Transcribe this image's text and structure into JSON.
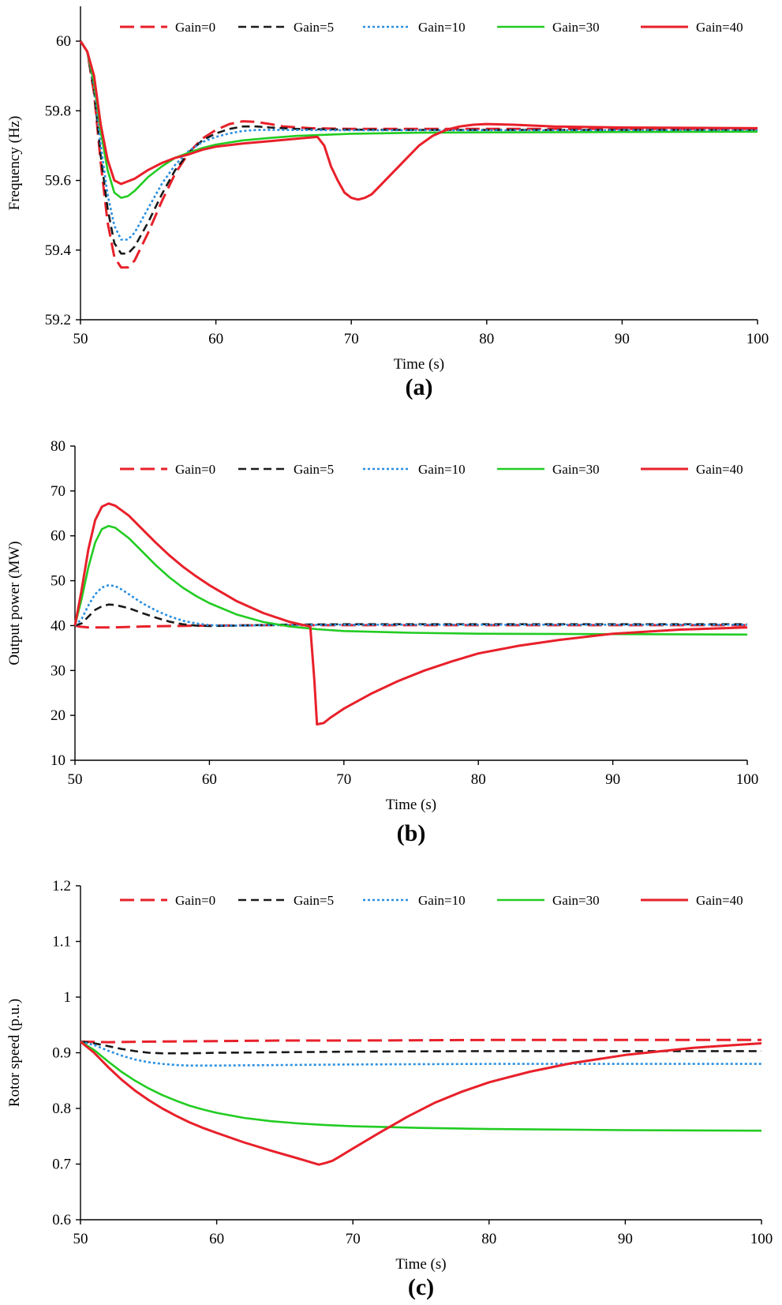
{
  "colors": {
    "gain0": "#e8202a",
    "gain5": "#1a1a1a",
    "gain10": "#2a8fe0",
    "gain30": "#22cc22",
    "gain40": "#e8202a"
  },
  "chart_data": [
    {
      "type": "line",
      "panel_label": "(a)",
      "title": "",
      "xlabel": "Time (s)",
      "ylabel": "Frequency (Hz)",
      "xlim": [
        50,
        100
      ],
      "ylim": [
        59.2,
        60.1
      ],
      "xticks": [
        "50",
        "60",
        "70",
        "80",
        "90",
        "100"
      ],
      "yticks": [
        "59.2",
        "59.4",
        "59.6",
        "59.8",
        "60"
      ],
      "legend": [
        "Gain=0",
        "Gain=5",
        "Gain=10",
        "Gain=30",
        "Gain=40"
      ],
      "series": [
        {
          "name": "Gain=0",
          "x": [
            50,
            50.5,
            51,
            51.5,
            52,
            52.5,
            53,
            53.5,
            54,
            55,
            56,
            57,
            58,
            59,
            60,
            61,
            62,
            63,
            64,
            65,
            67,
            70,
            75,
            80,
            90,
            100
          ],
          "values": [
            60,
            59.97,
            59.85,
            59.65,
            59.48,
            59.38,
            59.35,
            59.35,
            59.37,
            59.45,
            59.54,
            59.62,
            59.68,
            59.72,
            59.745,
            59.762,
            59.77,
            59.768,
            59.762,
            59.755,
            59.75,
            59.748,
            59.748,
            59.748,
            59.748,
            59.748
          ]
        },
        {
          "name": "Gain=5",
          "x": [
            50,
            50.5,
            51,
            51.5,
            52,
            52.5,
            53,
            53.5,
            54,
            55,
            56,
            57,
            58,
            59,
            60,
            61,
            62,
            63,
            64,
            66,
            70,
            75,
            80,
            90,
            100
          ],
          "values": [
            60,
            59.97,
            59.86,
            59.67,
            59.52,
            59.42,
            59.39,
            59.39,
            59.41,
            59.48,
            59.56,
            59.63,
            59.68,
            59.715,
            59.735,
            59.748,
            59.755,
            59.755,
            59.752,
            59.748,
            59.746,
            59.745,
            59.745,
            59.745,
            59.745
          ]
        },
        {
          "name": "Gain=10",
          "x": [
            50,
            50.5,
            51,
            51.5,
            52,
            52.5,
            53,
            53.5,
            54,
            55,
            56,
            57,
            58,
            59,
            60,
            61,
            62,
            63,
            65,
            70,
            75,
            80,
            90,
            100
          ],
          "values": [
            60,
            59.97,
            59.87,
            59.7,
            59.56,
            59.47,
            59.43,
            59.43,
            59.45,
            59.52,
            59.59,
            59.645,
            59.685,
            59.71,
            59.725,
            59.735,
            59.742,
            59.745,
            59.745,
            59.744,
            59.744,
            59.744,
            59.744,
            59.744
          ]
        },
        {
          "name": "Gain=30",
          "x": [
            50,
            50.5,
            51,
            51.5,
            52,
            52.5,
            53,
            53.5,
            54,
            55,
            56,
            57,
            58,
            59,
            60,
            62,
            64,
            66,
            70,
            75,
            80,
            90,
            100
          ],
          "values": [
            60,
            59.97,
            59.88,
            59.74,
            59.63,
            59.565,
            59.55,
            59.555,
            59.57,
            59.61,
            59.64,
            59.665,
            59.68,
            59.693,
            59.703,
            59.715,
            59.722,
            59.728,
            59.734,
            59.737,
            59.738,
            59.739,
            59.74
          ]
        },
        {
          "name": "Gain=40",
          "x": [
            50,
            50.5,
            51,
            51.5,
            52,
            52.5,
            53,
            54,
            55,
            56,
            57,
            58,
            59,
            60,
            62,
            64,
            66,
            67.5,
            68,
            68.5,
            69,
            69.5,
            70,
            70.5,
            71,
            71.5,
            72,
            73,
            74,
            75,
            76,
            77,
            78,
            79,
            80,
            82,
            85,
            90,
            100
          ],
          "values": [
            60,
            59.97,
            59.9,
            59.76,
            59.66,
            59.6,
            59.59,
            59.605,
            59.63,
            59.65,
            59.665,
            59.675,
            59.688,
            59.697,
            59.706,
            59.713,
            59.72,
            59.725,
            59.7,
            59.64,
            59.6,
            59.565,
            59.55,
            59.545,
            59.55,
            59.56,
            59.58,
            59.62,
            59.66,
            59.7,
            59.728,
            59.745,
            59.755,
            59.76,
            59.762,
            59.76,
            59.755,
            59.752,
            59.75
          ]
        }
      ]
    },
    {
      "type": "line",
      "panel_label": "(b)",
      "title": "",
      "xlabel": "Time (s)",
      "ylabel": "Output power (MW)",
      "xlim": [
        50,
        100
      ],
      "ylim": [
        10,
        80
      ],
      "xticks": [
        "50",
        "60",
        "70",
        "80",
        "90",
        "100"
      ],
      "yticks": [
        "10",
        "20",
        "30",
        "40",
        "50",
        "60",
        "70",
        "80"
      ],
      "legend": [
        "Gain=0",
        "Gain=5",
        "Gain=10",
        "Gain=30",
        "Gain=40"
      ],
      "series": [
        {
          "name": "Gain=0",
          "x": [
            50,
            50.3,
            51,
            52,
            53,
            54,
            55,
            57,
            60,
            65,
            70,
            80,
            90,
            100
          ],
          "values": [
            40,
            39.8,
            39.6,
            39.6,
            39.6,
            39.7,
            39.8,
            39.9,
            40,
            40.1,
            40.1,
            40.1,
            40.1,
            40.1
          ]
        },
        {
          "name": "Gain=5",
          "x": [
            50,
            50.5,
            51,
            51.5,
            52,
            52.5,
            53,
            54,
            55,
            56,
            57,
            58,
            59,
            60,
            62,
            65,
            70,
            80,
            90,
            100
          ],
          "values": [
            40,
            40.5,
            42,
            43.5,
            44.3,
            44.7,
            44.6,
            43.9,
            42.8,
            41.8,
            40.9,
            40.3,
            40,
            39.9,
            40,
            40.2,
            40.3,
            40.3,
            40.3,
            40.3
          ]
        },
        {
          "name": "Gain=10",
          "x": [
            50,
            50.5,
            51,
            51.5,
            52,
            52.5,
            53,
            53.5,
            54,
            55,
            56,
            57,
            58,
            59,
            60,
            62,
            65,
            70,
            80,
            90,
            100
          ],
          "values": [
            40,
            41.5,
            44.5,
            47,
            48.5,
            49,
            48.8,
            48,
            47,
            45,
            43.4,
            42.1,
            41.1,
            40.5,
            40.1,
            40,
            40.1,
            40.2,
            40.2,
            40.2,
            40.2
          ]
        },
        {
          "name": "Gain=30",
          "x": [
            50,
            50.5,
            51,
            51.5,
            52,
            52.5,
            53,
            54,
            55,
            56,
            57,
            58,
            59,
            60,
            62,
            64,
            66,
            68,
            70,
            75,
            80,
            90,
            100
          ],
          "values": [
            40,
            46,
            53,
            58.5,
            61.5,
            62.2,
            61.8,
            59.5,
            56.5,
            53.5,
            50.8,
            48.5,
            46.6,
            45,
            42.5,
            40.8,
            39.8,
            39.2,
            38.8,
            38.4,
            38.2,
            38.1,
            38
          ]
        },
        {
          "name": "Gain=40",
          "x": [
            50,
            50.5,
            51,
            51.5,
            52,
            52.5,
            53,
            54,
            55,
            56,
            57,
            58,
            59,
            60,
            62,
            64,
            66,
            67.5,
            67.8,
            68,
            68.5,
            69,
            70,
            72,
            74,
            76,
            78,
            80,
            83,
            86,
            90,
            95,
            100
          ],
          "values": [
            40,
            48,
            57,
            63.5,
            66.5,
            67.2,
            66.7,
            64.5,
            61.5,
            58.5,
            55.7,
            53.2,
            51,
            49,
            45.5,
            42.8,
            40.8,
            39.8,
            28,
            18,
            18.3,
            19.5,
            21.5,
            24.8,
            27.6,
            30,
            32,
            33.8,
            35.5,
            36.8,
            38.2,
            39.1,
            39.6
          ]
        }
      ]
    },
    {
      "type": "line",
      "panel_label": "(c)",
      "title": "",
      "xlabel": "Time (s)",
      "ylabel": "Rotor speed (p.u.)",
      "xlim": [
        50,
        100
      ],
      "ylim": [
        0.6,
        1.2
      ],
      "xticks": [
        "50",
        "60",
        "70",
        "80",
        "90",
        "100"
      ],
      "yticks": [
        "0.6",
        "0.7",
        "0.8",
        "0.9",
        "1",
        "1.1",
        "1.2"
      ],
      "legend": [
        "Gain=0",
        "Gain=5",
        "Gain=10",
        "Gain=30",
        "Gain=40"
      ],
      "series": [
        {
          "name": "Gain=0",
          "x": [
            50,
            52,
            55,
            60,
            65,
            70,
            80,
            90,
            100
          ],
          "values": [
            0.92,
            0.919,
            0.92,
            0.921,
            0.922,
            0.922,
            0.923,
            0.923,
            0.923
          ]
        },
        {
          "name": "Gain=5",
          "x": [
            50,
            51,
            52,
            53,
            54,
            55,
            56,
            58,
            60,
            65,
            70,
            80,
            90,
            100
          ],
          "values": [
            0.92,
            0.917,
            0.912,
            0.907,
            0.903,
            0.9,
            0.899,
            0.899,
            0.9,
            0.901,
            0.902,
            0.903,
            0.903,
            0.903
          ]
        },
        {
          "name": "Gain=10",
          "x": [
            50,
            51,
            52,
            53,
            54,
            55,
            56,
            57,
            58,
            60,
            65,
            70,
            80,
            90,
            100
          ],
          "values": [
            0.92,
            0.914,
            0.904,
            0.895,
            0.888,
            0.883,
            0.88,
            0.878,
            0.877,
            0.877,
            0.878,
            0.879,
            0.88,
            0.88,
            0.88
          ]
        },
        {
          "name": "Gain=30",
          "x": [
            50,
            51,
            52,
            53,
            54,
            55,
            56,
            57,
            58,
            59,
            60,
            62,
            64,
            66,
            68,
            70,
            75,
            80,
            90,
            100
          ],
          "values": [
            0.92,
            0.905,
            0.885,
            0.866,
            0.85,
            0.836,
            0.824,
            0.814,
            0.805,
            0.798,
            0.792,
            0.783,
            0.777,
            0.773,
            0.77,
            0.768,
            0.765,
            0.763,
            0.761,
            0.76
          ]
        },
        {
          "name": "Gain=40",
          "x": [
            50,
            51,
            52,
            53,
            54,
            55,
            56,
            57,
            58,
            59,
            60,
            62,
            64,
            66,
            67.5,
            68,
            68.5,
            69,
            70,
            72,
            74,
            76,
            78,
            80,
            83,
            86,
            90,
            95,
            100
          ],
          "values": [
            0.92,
            0.9,
            0.875,
            0.852,
            0.832,
            0.815,
            0.8,
            0.787,
            0.775,
            0.765,
            0.756,
            0.739,
            0.724,
            0.71,
            0.699,
            0.702,
            0.706,
            0.713,
            0.728,
            0.757,
            0.785,
            0.81,
            0.83,
            0.847,
            0.866,
            0.881,
            0.896,
            0.909,
            0.917
          ]
        }
      ]
    }
  ]
}
